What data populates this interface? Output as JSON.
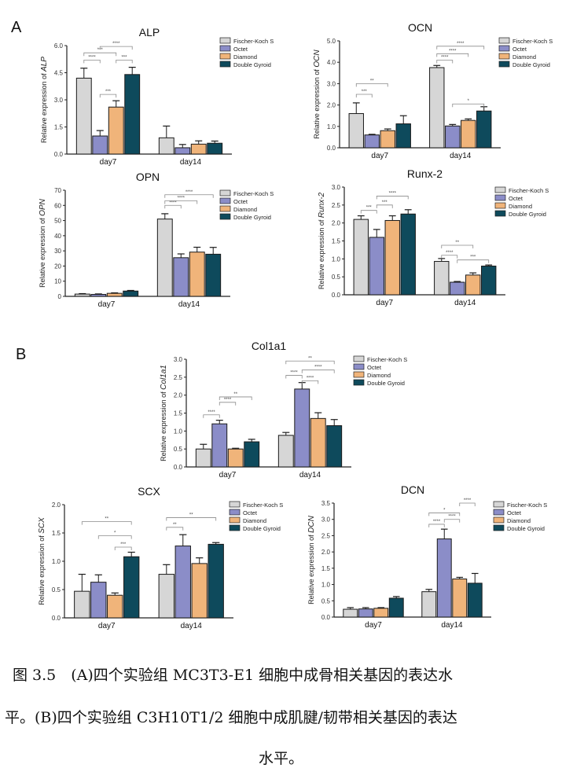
{
  "panels": {
    "a": "A",
    "b": "B"
  },
  "legend": [
    {
      "name": "Fischer-Koch S",
      "color": "#d6d6d6"
    },
    {
      "name": "Octet",
      "color": "#8b8dc8"
    },
    {
      "name": "Diamond",
      "color": "#f0b47a"
    },
    {
      "name": "Double Gyroid",
      "color": "#0e4a5c"
    }
  ],
  "chart_data": [
    {
      "id": "alp",
      "type": "bar",
      "title": "ALP",
      "ylabel_prefix": "Relative expression of ",
      "ylabel_gene": "ALP",
      "categories": [
        "day7",
        "day14"
      ],
      "ylim": [
        0,
        6.0
      ],
      "yticks": [
        "0.0",
        "1.5",
        "3.0",
        "4.5",
        "6.0"
      ],
      "ytick_values": [
        0,
        1.5,
        3.0,
        4.5,
        6.0
      ],
      "series": [
        {
          "name": "Fischer-Koch S",
          "values": [
            4.2,
            0.9
          ],
          "errors": [
            0.55,
            0.65
          ]
        },
        {
          "name": "Octet",
          "values": [
            1.0,
            0.35
          ],
          "errors": [
            0.3,
            0.18
          ]
        },
        {
          "name": "Diamond",
          "values": [
            2.6,
            0.55
          ],
          "errors": [
            0.35,
            0.18
          ]
        },
        {
          "name": "Double Gyroid",
          "values": [
            4.4,
            0.6
          ],
          "errors": [
            0.4,
            0.12
          ]
        }
      ],
      "significance": [
        {
          "group": 0,
          "from": 0,
          "to": 1,
          "label": "****",
          "level": 5.2
        },
        {
          "group": 0,
          "from": 0,
          "to": 2,
          "label": "***",
          "level": 5.6
        },
        {
          "group": 0,
          "from": 1,
          "to": 3,
          "label": "****",
          "level": 5.95
        },
        {
          "group": 0,
          "from": 2,
          "to": 3,
          "label": "***",
          "level": 5.2
        },
        {
          "group": 0,
          "from": 1,
          "to": 2,
          "label": "***",
          "level": 3.3
        }
      ]
    },
    {
      "id": "ocn",
      "type": "bar",
      "title": "OCN",
      "ylabel_prefix": "Relative expression of ",
      "ylabel_gene": "OCN",
      "categories": [
        "day7",
        "day14"
      ],
      "ylim": [
        0,
        5.0
      ],
      "yticks": [
        "0.0",
        "1.0",
        "2.0",
        "3.0",
        "4.0",
        "5.0"
      ],
      "ytick_values": [
        0,
        1,
        2,
        3,
        4,
        5
      ],
      "series": [
        {
          "name": "Fischer-Koch S",
          "values": [
            1.6,
            3.75
          ],
          "errors": [
            0.5,
            0.1
          ]
        },
        {
          "name": "Octet",
          "values": [
            0.6,
            1.02
          ],
          "errors": [
            0.03,
            0.07
          ]
        },
        {
          "name": "Diamond",
          "values": [
            0.8,
            1.28
          ],
          "errors": [
            0.08,
            0.07
          ]
        },
        {
          "name": "Double Gyroid",
          "values": [
            1.12,
            1.72
          ],
          "errors": [
            0.38,
            0.2
          ]
        }
      ],
      "significance": [
        {
          "group": 0,
          "from": 0,
          "to": 1,
          "label": "***",
          "level": 2.5
        },
        {
          "group": 0,
          "from": 0,
          "to": 2,
          "label": "**",
          "level": 3.0
        },
        {
          "group": 1,
          "from": 0,
          "to": 1,
          "label": "****",
          "level": 4.1
        },
        {
          "group": 1,
          "from": 0,
          "to": 2,
          "label": "****",
          "level": 4.4
        },
        {
          "group": 1,
          "from": 0,
          "to": 3,
          "label": "****",
          "level": 4.75
        },
        {
          "group": 1,
          "from": 1,
          "to": 3,
          "label": "*",
          "level": 2.05
        }
      ]
    },
    {
      "id": "opn",
      "type": "bar",
      "title": "OPN",
      "ylabel_prefix": "Relative expression of ",
      "ylabel_gene": "OPN",
      "categories": [
        "day7",
        "day14"
      ],
      "ylim": [
        0,
        70
      ],
      "yticks": [
        "0",
        "10",
        "20",
        "30",
        "40",
        "50",
        "60",
        "70"
      ],
      "ytick_values": [
        0,
        10,
        20,
        30,
        40,
        50,
        60,
        70
      ],
      "series": [
        {
          "name": "Fischer-Koch S",
          "values": [
            1.5,
            51
          ],
          "errors": [
            0.3,
            3.5
          ]
        },
        {
          "name": "Octet",
          "values": [
            1.3,
            25.5
          ],
          "errors": [
            0.3,
            2.5
          ]
        },
        {
          "name": "Diamond",
          "values": [
            2.0,
            29.2
          ],
          "errors": [
            0.3,
            3.2
          ]
        },
        {
          "name": "Double Gyroid",
          "values": [
            3.5,
            27.8
          ],
          "errors": [
            0.4,
            4.5
          ]
        }
      ],
      "significance": [
        {
          "group": 1,
          "from": 0,
          "to": 1,
          "label": "****",
          "level": 60
        },
        {
          "group": 1,
          "from": 0,
          "to": 2,
          "label": "****",
          "level": 63
        },
        {
          "group": 1,
          "from": 0,
          "to": 3,
          "label": "****",
          "level": 67
        }
      ]
    },
    {
      "id": "runx2",
      "type": "bar",
      "title": "Runx-2",
      "ylabel_prefix": "Relative expression of ",
      "ylabel_gene": "Runx-2",
      "categories": [
        "day7",
        "day14"
      ],
      "ylim": [
        0,
        3.0
      ],
      "yticks": [
        "0.0",
        "0.5",
        "1.0",
        "1.5",
        "2.0",
        "2.5",
        "3.0"
      ],
      "ytick_values": [
        0,
        0.5,
        1.0,
        1.5,
        2.0,
        2.5,
        3.0
      ],
      "series": [
        {
          "name": "Fischer-Koch S",
          "values": [
            2.1,
            0.93
          ],
          "errors": [
            0.1,
            0.08
          ]
        },
        {
          "name": "Octet",
          "values": [
            1.6,
            0.35
          ],
          "errors": [
            0.22,
            0.02
          ]
        },
        {
          "name": "Diamond",
          "values": [
            2.07,
            0.55
          ],
          "errors": [
            0.13,
            0.06
          ]
        },
        {
          "name": "Double Gyroid",
          "values": [
            2.25,
            0.8
          ],
          "errors": [
            0.12,
            0.03
          ]
        }
      ],
      "significance": [
        {
          "group": 0,
          "from": 0,
          "to": 1,
          "label": "***",
          "level": 2.35
        },
        {
          "group": 0,
          "from": 1,
          "to": 2,
          "label": "***",
          "level": 2.5
        },
        {
          "group": 0,
          "from": 1,
          "to": 3,
          "label": "****",
          "level": 2.75
        },
        {
          "group": 1,
          "from": 0,
          "to": 1,
          "label": "****",
          "level": 1.1
        },
        {
          "group": 1,
          "from": 0,
          "to": 2,
          "label": "**",
          "level": 1.38
        },
        {
          "group": 1,
          "from": 1,
          "to": 3,
          "label": "***",
          "level": 0.97
        }
      ]
    },
    {
      "id": "col1a1",
      "type": "bar",
      "title": "Col1a1",
      "ylabel_prefix": "Relative expression of ",
      "ylabel_gene": "Col1a1",
      "categories": [
        "day7",
        "day14"
      ],
      "ylim": [
        0,
        3.0
      ],
      "yticks": [
        "0.0",
        "0.5",
        "1.0",
        "1.5",
        "2.0",
        "2.5",
        "3.0"
      ],
      "ytick_values": [
        0,
        0.5,
        1.0,
        1.5,
        2.0,
        2.5,
        3.0
      ],
      "series": [
        {
          "name": "Fischer-Koch S",
          "values": [
            0.5,
            0.88
          ],
          "errors": [
            0.13,
            0.08
          ]
        },
        {
          "name": "Octet",
          "values": [
            1.2,
            2.17
          ],
          "errors": [
            0.1,
            0.18
          ]
        },
        {
          "name": "Diamond",
          "values": [
            0.5,
            1.35
          ],
          "errors": [
            0.02,
            0.16
          ]
        },
        {
          "name": "Double Gyroid",
          "values": [
            0.7,
            1.15
          ],
          "errors": [
            0.07,
            0.17
          ]
        }
      ],
      "significance": [
        {
          "group": 0,
          "from": 0,
          "to": 1,
          "label": "****",
          "level": 1.45
        },
        {
          "group": 0,
          "from": 1,
          "to": 2,
          "label": "****",
          "level": 1.8
        },
        {
          "group": 0,
          "from": 1,
          "to": 3,
          "label": "**",
          "level": 1.95
        },
        {
          "group": 1,
          "from": 0,
          "to": 1,
          "label": "****",
          "level": 2.55
        },
        {
          "group": 1,
          "from": 1,
          "to": 2,
          "label": "****",
          "level": 2.4
        },
        {
          "group": 1,
          "from": 0,
          "to": 3,
          "label": "**",
          "level": 2.95
        },
        {
          "group": 1,
          "from": 1,
          "to": 3,
          "label": "****",
          "level": 2.7
        }
      ]
    },
    {
      "id": "scx",
      "type": "bar",
      "title": "SCX",
      "ylabel_prefix": "Relative expression of ",
      "ylabel_gene": "SCX",
      "categories": [
        "day7",
        "day14"
      ],
      "ylim": [
        0,
        2.0
      ],
      "yticks": [
        "0.0",
        "0.5",
        "1.0",
        "1.5",
        "2.0"
      ],
      "ytick_values": [
        0,
        0.5,
        1.0,
        1.5,
        2.0
      ],
      "series": [
        {
          "name": "Fischer-Koch S",
          "values": [
            0.47,
            0.77
          ],
          "errors": [
            0.3,
            0.17
          ]
        },
        {
          "name": "Octet",
          "values": [
            0.63,
            1.27
          ],
          "errors": [
            0.13,
            0.2
          ]
        },
        {
          "name": "Diamond",
          "values": [
            0.4,
            0.96
          ],
          "errors": [
            0.04,
            0.1
          ]
        },
        {
          "name": "Double Gyroid",
          "values": [
            1.08,
            1.3
          ],
          "errors": [
            0.08,
            0.03
          ]
        }
      ],
      "significance": [
        {
          "group": 0,
          "from": 0,
          "to": 3,
          "label": "**",
          "level": 1.7
        },
        {
          "group": 0,
          "from": 1,
          "to": 3,
          "label": "*",
          "level": 1.45
        },
        {
          "group": 0,
          "from": 2,
          "to": 3,
          "label": "***",
          "level": 1.25
        },
        {
          "group": 1,
          "from": 0,
          "to": 1,
          "label": "**",
          "level": 1.6
        },
        {
          "group": 1,
          "from": 0,
          "to": 3,
          "label": "**",
          "level": 1.77
        }
      ]
    },
    {
      "id": "dcn",
      "type": "bar",
      "title": "DCN",
      "ylabel_prefix": "Relative expression of ",
      "ylabel_gene": "DCN",
      "categories": [
        "day7",
        "day14"
      ],
      "ylim": [
        0,
        3.5
      ],
      "yticks": [
        "0.0",
        "0.5",
        "1.0",
        "1.5",
        "2.0",
        "2.5",
        "3.0",
        "3.5"
      ],
      "ytick_values": [
        0,
        0.5,
        1.0,
        1.5,
        2.0,
        2.5,
        3.0,
        3.5
      ],
      "series": [
        {
          "name": "Fischer-Koch S",
          "values": [
            0.24,
            0.78
          ],
          "errors": [
            0.05,
            0.07
          ]
        },
        {
          "name": "Octet",
          "values": [
            0.25,
            2.4
          ],
          "errors": [
            0.04,
            0.3
          ]
        },
        {
          "name": "Diamond",
          "values": [
            0.27,
            1.17
          ],
          "errors": [
            0.02,
            0.05
          ]
        },
        {
          "name": "Double Gyroid",
          "values": [
            0.58,
            1.04
          ],
          "errors": [
            0.05,
            0.3
          ]
        }
      ],
      "significance": [
        {
          "group": 1,
          "from": 0,
          "to": 1,
          "label": "****",
          "level": 2.85
        },
        {
          "group": 1,
          "from": 0,
          "to": 2,
          "label": "*",
          "level": 3.2
        },
        {
          "group": 1,
          "from": 1,
          "to": 2,
          "label": "****",
          "level": 3.0
        },
        {
          "group": 1,
          "from": 2,
          "to": 3,
          "label": "****",
          "level": 3.5
        }
      ]
    }
  ],
  "caption": {
    "line1": "图 3.5　(A)四个实验组 MC3T3-E1 细胞中成骨相关基因的表达水",
    "line2": "平。(B)四个实验组 C3H10T1/2 细胞中成肌腱/韧带相关基因的表达",
    "line3": "水平。"
  }
}
